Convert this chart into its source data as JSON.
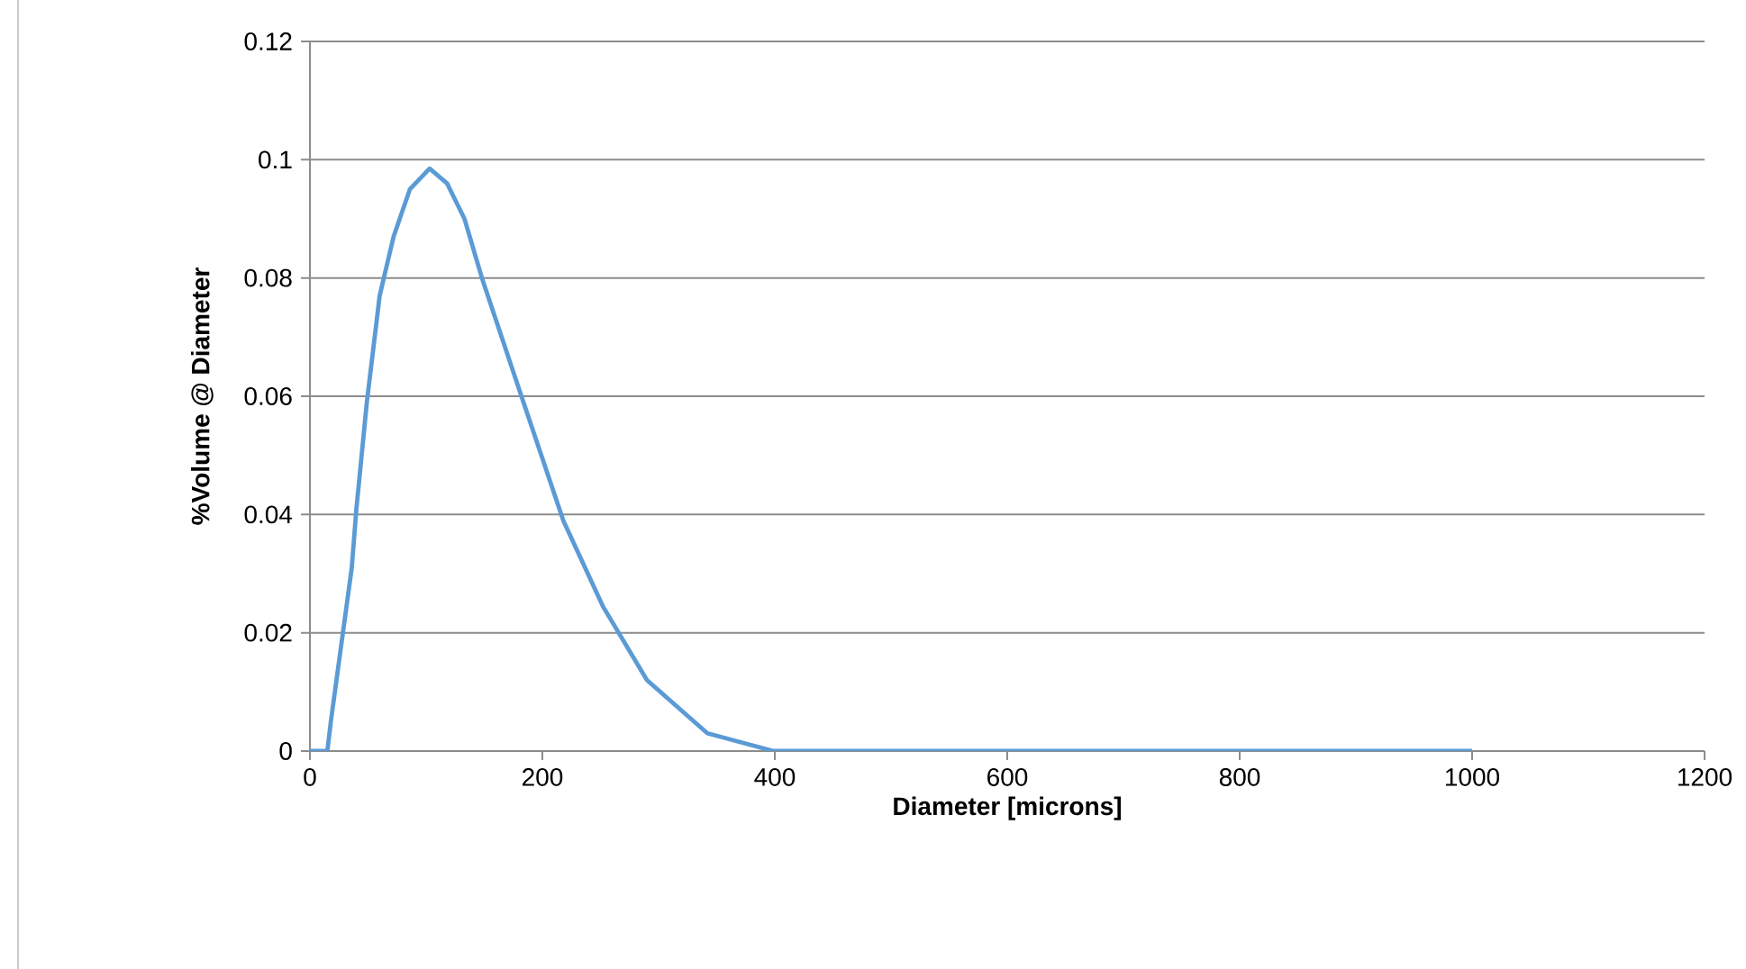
{
  "chart_data": {
    "type": "line",
    "xlabel": "Diameter [microns]",
    "ylabel": "%Volume @ Diameter",
    "x": [
      0,
      15,
      18,
      27,
      36,
      40,
      49,
      60,
      72,
      86,
      103,
      118,
      133,
      148,
      182,
      218,
      252,
      290,
      342,
      399,
      1000
    ],
    "series": [
      {
        "color": "#5b9bd5",
        "values": [
          0,
          0,
          0.005,
          0.018,
          0.031,
          0.041,
          0.059,
          0.077,
          0.087,
          0.095,
          0.0985,
          0.096,
          0.09,
          0.08,
          0.06,
          0.039,
          0.0245,
          0.012,
          0.003,
          0,
          0
        ]
      }
    ],
    "xlim": [
      0,
      1200
    ],
    "ylim": [
      0,
      0.12
    ],
    "xticks": [
      0,
      200,
      400,
      600,
      800,
      1000,
      1200
    ],
    "yticks": [
      0,
      0.02,
      0.04,
      0.06,
      0.08,
      0.1,
      0.12
    ],
    "grid": "y",
    "marker": "none",
    "line_style": "solid"
  }
}
